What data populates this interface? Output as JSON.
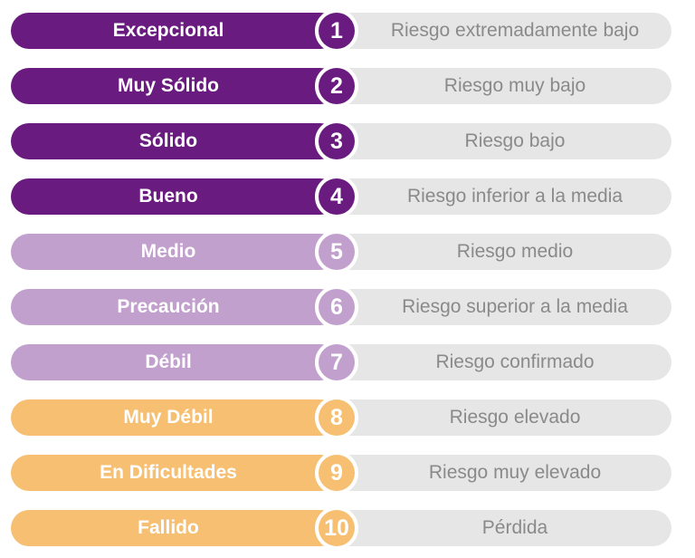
{
  "levels": [
    {
      "label": "Excepcional",
      "number": "1",
      "risk": "Riesgo extremadamente bajo",
      "group": "g1"
    },
    {
      "label": "Muy Sólido",
      "number": "2",
      "risk": "Riesgo muy bajo",
      "group": "g1"
    },
    {
      "label": "Sólido",
      "number": "3",
      "risk": "Riesgo bajo",
      "group": "g1"
    },
    {
      "label": "Bueno",
      "number": "4",
      "risk": "Riesgo inferior a la media",
      "group": "g1"
    },
    {
      "label": "Medio",
      "number": "5",
      "risk": "Riesgo medio",
      "group": "g2"
    },
    {
      "label": "Precaución",
      "number": "6",
      "risk": "Riesgo superior a la media",
      "group": "g2"
    },
    {
      "label": "Débil",
      "number": "7",
      "risk": "Riesgo confirmado",
      "group": "g2"
    },
    {
      "label": "Muy Débil",
      "number": "8",
      "risk": "Riesgo elevado",
      "group": "g3"
    },
    {
      "label": "En Dificultades",
      "number": "9",
      "risk": "Riesgo muy elevado",
      "group": "g3"
    },
    {
      "label": "Fallido",
      "number": "10",
      "risk": "Pérdida",
      "group": "g3"
    }
  ],
  "colors": {
    "g1": "#6a1b7f",
    "g2": "#c2a0cd",
    "g3": "#f6bf71",
    "description_pill": "#e6e6e6",
    "description_text": "#8a8a8a"
  }
}
